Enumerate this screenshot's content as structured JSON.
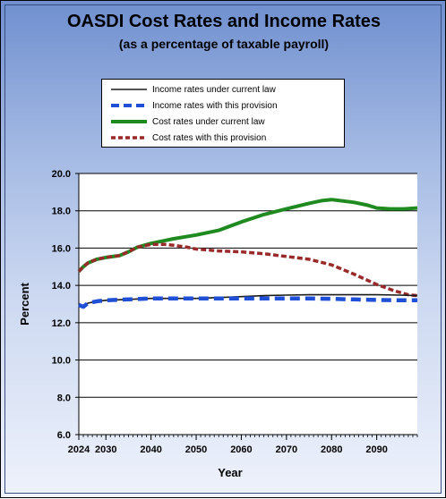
{
  "chart_data": {
    "type": "line",
    "title": "OASDI Cost Rates and Income Rates",
    "subtitle": "(as a percentage of taxable payroll)",
    "xlabel": "Year",
    "ylabel": "Percent",
    "xlim": [
      2024,
      2099
    ],
    "ylim": [
      6.0,
      20.0
    ],
    "yticks": [
      6.0,
      8.0,
      10.0,
      12.0,
      14.0,
      16.0,
      18.0,
      20.0
    ],
    "ytick_labels": [
      "6.0",
      "8.0",
      "10.0",
      "12.0",
      "14.0",
      "16.0",
      "18.0",
      "20.0"
    ],
    "xticks": [
      2024,
      2030,
      2040,
      2050,
      2060,
      2070,
      2080,
      2090
    ],
    "xtick_labels": [
      "2024",
      "2030",
      "2040",
      "2050",
      "2060",
      "2070",
      "2080",
      "2090"
    ],
    "grid": "horizontal",
    "legend": "top",
    "series": [
      {
        "name": "Income rates under current law",
        "color": "#1a1a1a",
        "style": "solid-thin",
        "points": [
          [
            2024,
            12.95
          ],
          [
            2025,
            12.85
          ],
          [
            2026,
            13.05
          ],
          [
            2028,
            13.15
          ],
          [
            2030,
            13.2
          ],
          [
            2035,
            13.25
          ],
          [
            2040,
            13.3
          ],
          [
            2045,
            13.3
          ],
          [
            2050,
            13.3
          ],
          [
            2055,
            13.35
          ],
          [
            2060,
            13.4
          ],
          [
            2065,
            13.45
          ],
          [
            2070,
            13.48
          ],
          [
            2075,
            13.5
          ],
          [
            2080,
            13.5
          ],
          [
            2085,
            13.5
          ],
          [
            2090,
            13.5
          ],
          [
            2095,
            13.48
          ],
          [
            2099,
            13.45
          ]
        ]
      },
      {
        "name": "Income rates with this provision",
        "color": "#1f4fd6",
        "style": "dashed-thick",
        "points": [
          [
            2024,
            12.95
          ],
          [
            2025,
            12.85
          ],
          [
            2026,
            13.05
          ],
          [
            2028,
            13.15
          ],
          [
            2030,
            13.2
          ],
          [
            2035,
            13.25
          ],
          [
            2040,
            13.3
          ],
          [
            2045,
            13.3
          ],
          [
            2050,
            13.3
          ],
          [
            2055,
            13.3
          ],
          [
            2060,
            13.3
          ],
          [
            2065,
            13.3
          ],
          [
            2070,
            13.3
          ],
          [
            2075,
            13.3
          ],
          [
            2080,
            13.28
          ],
          [
            2085,
            13.25
          ],
          [
            2090,
            13.22
          ],
          [
            2095,
            13.2
          ],
          [
            2099,
            13.2
          ]
        ]
      },
      {
        "name": "Cost rates under current law",
        "color": "#1f8a1f",
        "style": "solid-thick",
        "points": [
          [
            2024,
            14.75
          ],
          [
            2025,
            15.0
          ],
          [
            2026,
            15.2
          ],
          [
            2028,
            15.4
          ],
          [
            2030,
            15.5
          ],
          [
            2033,
            15.6
          ],
          [
            2035,
            15.8
          ],
          [
            2037,
            16.05
          ],
          [
            2040,
            16.25
          ],
          [
            2043,
            16.4
          ],
          [
            2045,
            16.5
          ],
          [
            2050,
            16.7
          ],
          [
            2055,
            16.95
          ],
          [
            2060,
            17.4
          ],
          [
            2065,
            17.8
          ],
          [
            2070,
            18.1
          ],
          [
            2075,
            18.4
          ],
          [
            2078,
            18.55
          ],
          [
            2080,
            18.6
          ],
          [
            2085,
            18.45
          ],
          [
            2088,
            18.3
          ],
          [
            2090,
            18.15
          ],
          [
            2093,
            18.1
          ],
          [
            2096,
            18.1
          ],
          [
            2099,
            18.15
          ]
        ]
      },
      {
        "name": "Cost rates with this provision",
        "color": "#9a2a2a",
        "style": "dashed-thick",
        "points": [
          [
            2024,
            14.75
          ],
          [
            2025,
            15.0
          ],
          [
            2026,
            15.2
          ],
          [
            2028,
            15.4
          ],
          [
            2030,
            15.5
          ],
          [
            2033,
            15.6
          ],
          [
            2035,
            15.8
          ],
          [
            2037,
            16.05
          ],
          [
            2040,
            16.2
          ],
          [
            2043,
            16.2
          ],
          [
            2045,
            16.15
          ],
          [
            2048,
            16.05
          ],
          [
            2050,
            15.95
          ],
          [
            2055,
            15.85
          ],
          [
            2060,
            15.8
          ],
          [
            2065,
            15.7
          ],
          [
            2070,
            15.55
          ],
          [
            2075,
            15.4
          ],
          [
            2080,
            15.1
          ],
          [
            2085,
            14.6
          ],
          [
            2090,
            14.05
          ],
          [
            2094,
            13.7
          ],
          [
            2097,
            13.5
          ],
          [
            2099,
            13.45
          ]
        ]
      }
    ]
  }
}
